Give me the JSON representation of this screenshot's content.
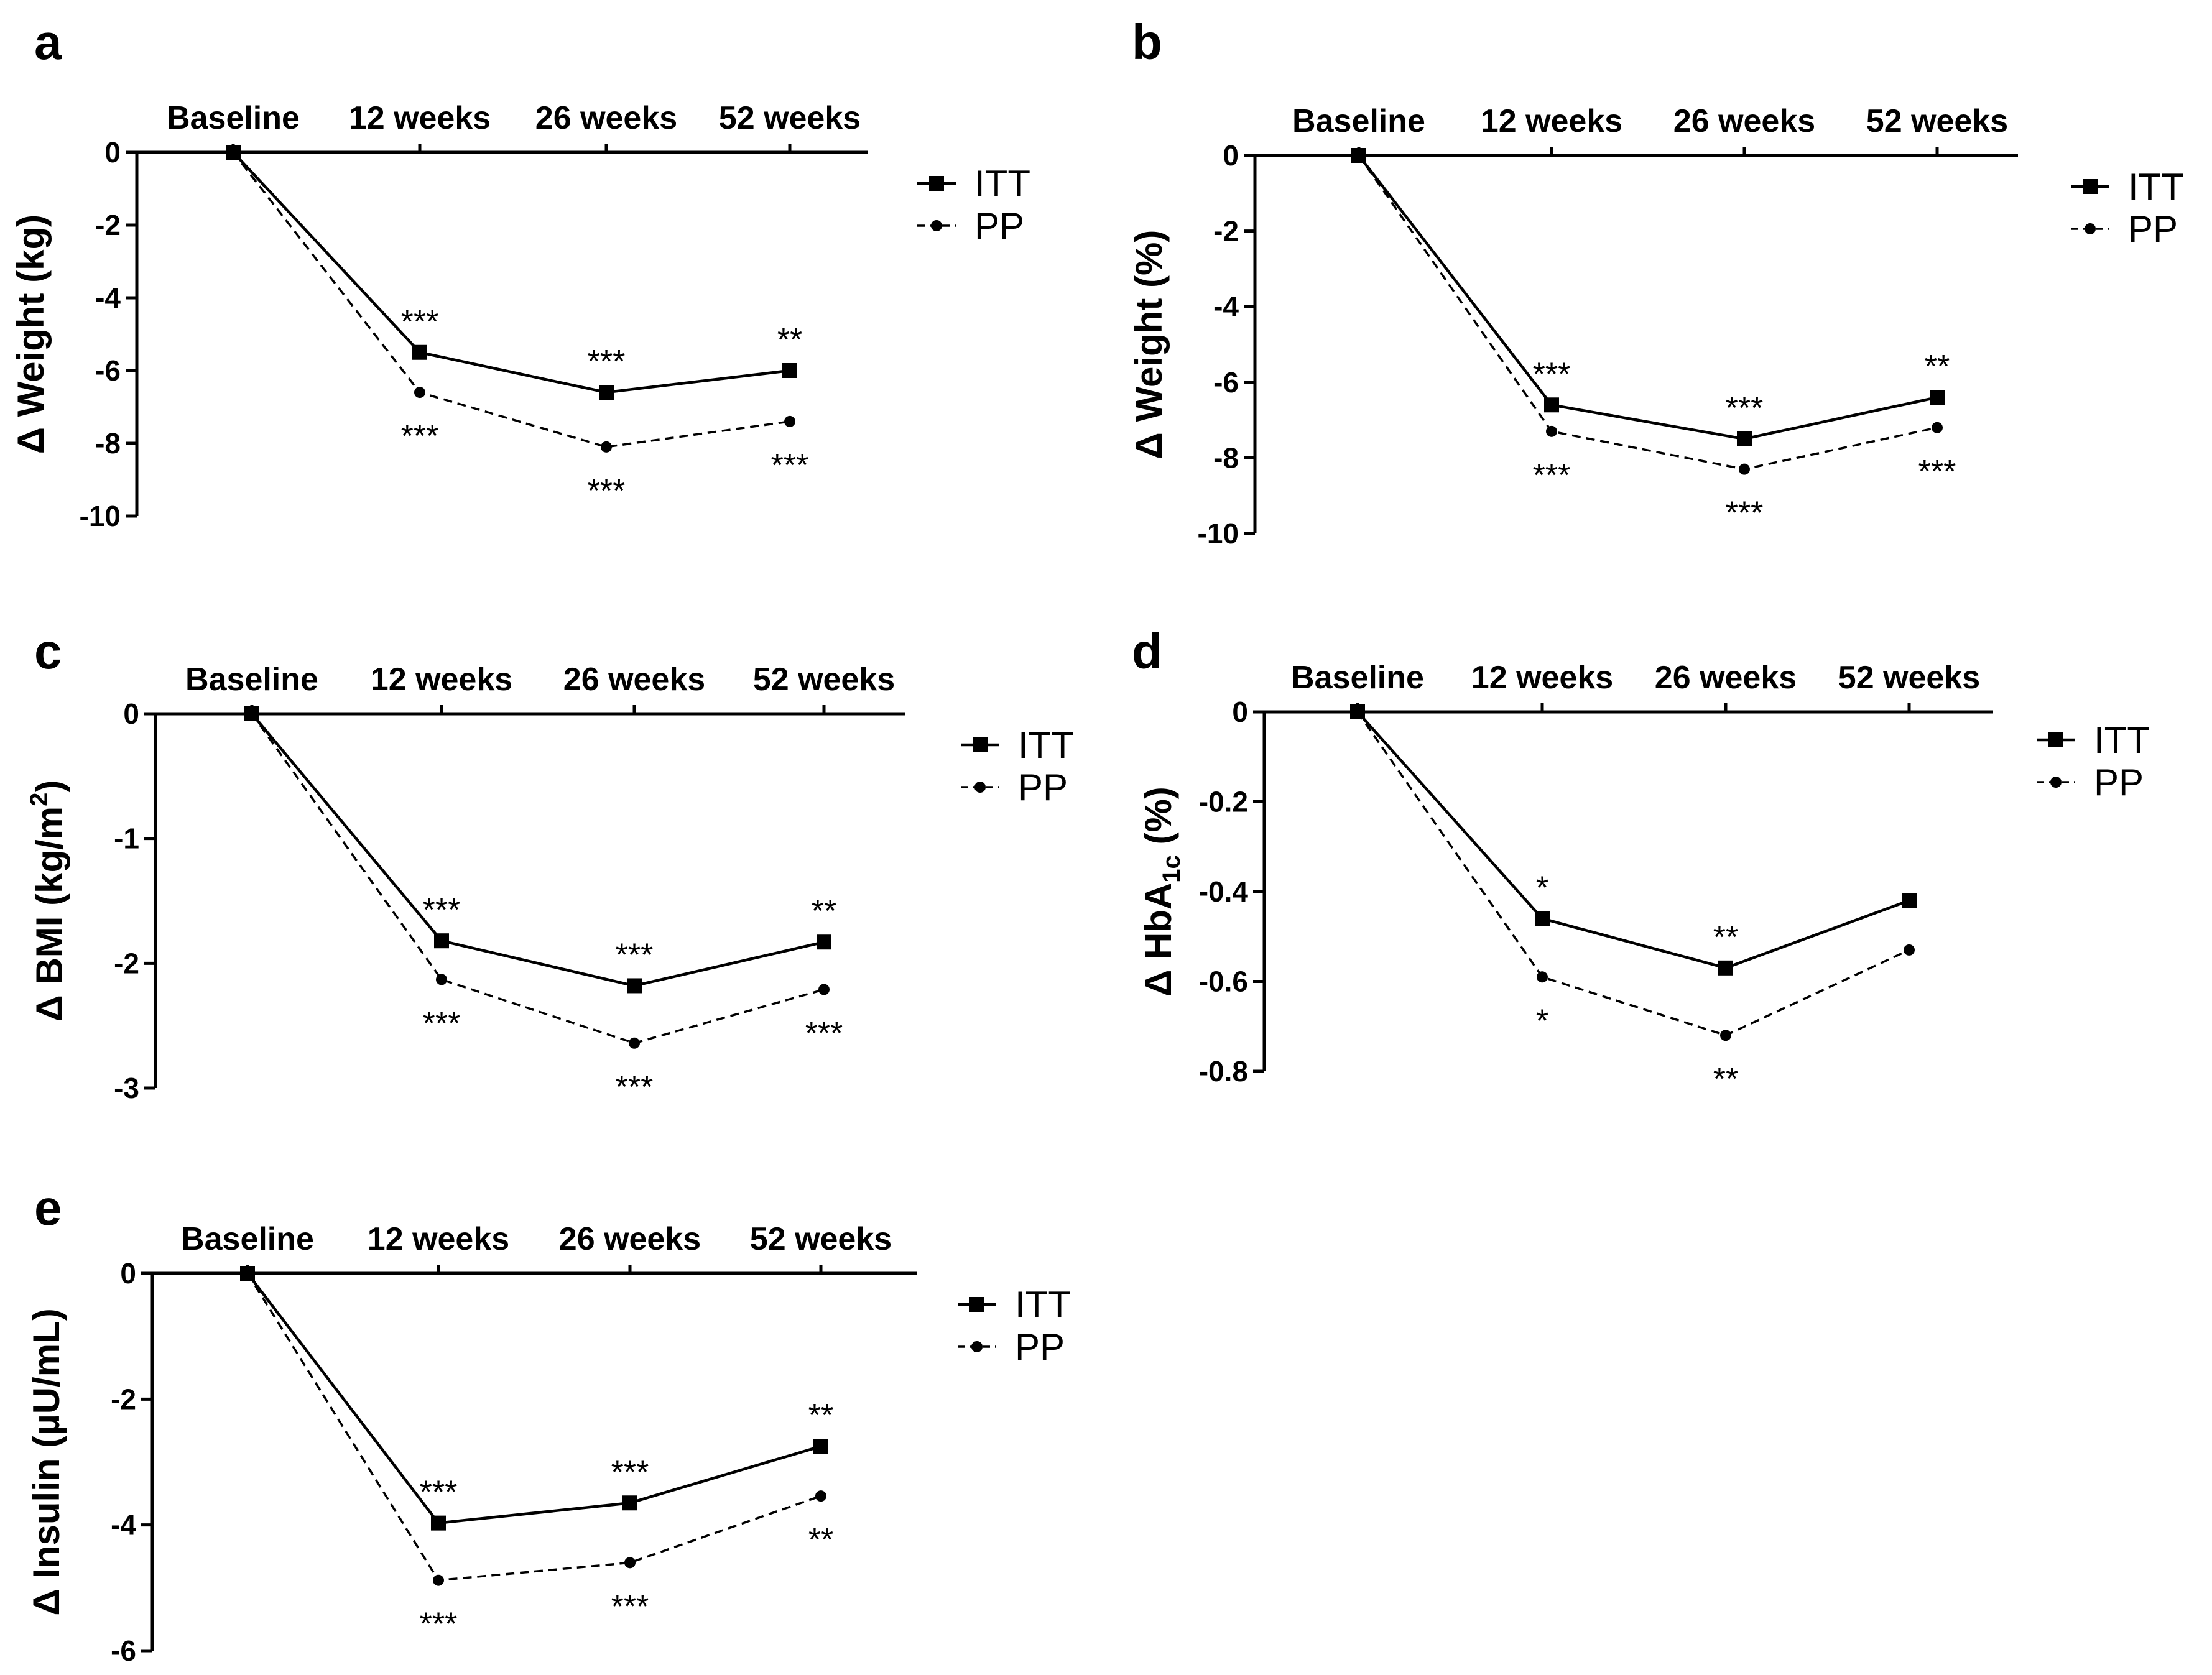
{
  "chart_data": [
    {
      "panel": "a",
      "type": "line",
      "categories": [
        "Baseline",
        "12 weeks",
        "26 weeks",
        "52 weeks"
      ],
      "ylabel": "Δ Weight (kg)",
      "ylim": [
        -10,
        0
      ],
      "yticks": [
        0,
        -2,
        -4,
        -6,
        -8,
        -10
      ],
      "series": [
        {
          "name": "ITT",
          "values": [
            0,
            -5.5,
            -6.6,
            -6.0
          ],
          "sig": [
            "",
            "***",
            "***",
            "**"
          ]
        },
        {
          "name": "PP",
          "values": [
            0,
            -6.6,
            -8.1,
            -7.4
          ],
          "sig": [
            "",
            "***",
            "***",
            "***"
          ]
        }
      ]
    },
    {
      "panel": "b",
      "type": "line",
      "categories": [
        "Baseline",
        "12 weeks",
        "26 weeks",
        "52 weeks"
      ],
      "ylabel": "Δ Weight (%)",
      "ylim": [
        -10,
        0
      ],
      "yticks": [
        0,
        -2,
        -4,
        -6,
        -8,
        -10
      ],
      "series": [
        {
          "name": "ITT",
          "values": [
            0,
            -6.6,
            -7.5,
            -6.4
          ],
          "sig": [
            "",
            "***",
            "***",
            "**"
          ]
        },
        {
          "name": "PP",
          "values": [
            0,
            -7.3,
            -8.3,
            -7.2
          ],
          "sig": [
            "",
            "***",
            "***",
            "***"
          ]
        }
      ]
    },
    {
      "panel": "c",
      "type": "line",
      "categories": [
        "Baseline",
        "12 weeks",
        "26 weeks",
        "52 weeks"
      ],
      "ylabel": "Δ BMI (kg/m",
      "ylabel_sup": "2",
      "ylabel_end": ")",
      "ylim": [
        -3,
        0
      ],
      "yticks": [
        0,
        -1,
        -2,
        -3
      ],
      "series": [
        {
          "name": "ITT",
          "values": [
            0,
            -1.82,
            -2.18,
            -1.83
          ],
          "sig": [
            "",
            "***",
            "***",
            "**"
          ]
        },
        {
          "name": "PP",
          "values": [
            0,
            -2.13,
            -2.64,
            -2.21
          ],
          "sig": [
            "",
            "***",
            "***",
            "***"
          ]
        }
      ]
    },
    {
      "panel": "d",
      "type": "line",
      "categories": [
        "Baseline",
        "12 weeks",
        "26 weeks",
        "52 weeks"
      ],
      "ylabel": "Δ HbA",
      "ylabel_sub": "1c",
      "ylabel_end": " (%)",
      "ylim": [
        -0.8,
        0
      ],
      "yticks": [
        0,
        -0.2,
        -0.4,
        -0.6,
        -0.8
      ],
      "series": [
        {
          "name": "ITT",
          "values": [
            0,
            -0.46,
            -0.57,
            -0.42
          ],
          "sig": [
            "",
            "*",
            "**",
            ""
          ]
        },
        {
          "name": "PP",
          "values": [
            0,
            -0.59,
            -0.72,
            -0.53
          ],
          "sig": [
            "",
            "*",
            "**",
            ""
          ]
        }
      ]
    },
    {
      "panel": "e",
      "type": "line",
      "categories": [
        "Baseline",
        "12 weeks",
        "26 weeks",
        "52 weeks"
      ],
      "ylabel": "Δ Insulin (µU/mL)",
      "ylim": [
        -6,
        0
      ],
      "yticks": [
        0,
        -2,
        -4,
        -6
      ],
      "series": [
        {
          "name": "ITT",
          "values": [
            0,
            -3.97,
            -3.65,
            -2.75
          ],
          "sig": [
            "",
            "***",
            "***",
            "**"
          ]
        },
        {
          "name": "PP",
          "values": [
            0,
            -4.88,
            -4.6,
            -3.54
          ],
          "sig": [
            "",
            "***",
            "***",
            "**"
          ]
        }
      ]
    }
  ]
}
